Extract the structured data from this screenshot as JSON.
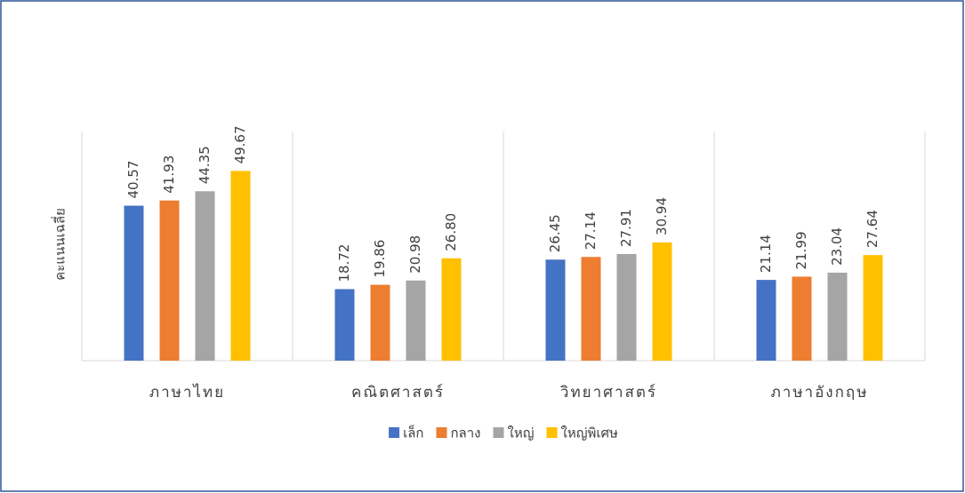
{
  "chart_data": {
    "type": "bar",
    "y_label": "คะแนนเฉลี่ย",
    "categories": [
      "ภาษาไทย",
      "คณิตศาสตร์",
      "วิทยาศาสตร์",
      "ภาษาอังกฤษ"
    ],
    "series": [
      {
        "name": "เล็ก",
        "color": "#4472c4",
        "values": [
          40.57,
          18.72,
          26.45,
          21.14
        ]
      },
      {
        "name": "กลาง",
        "color": "#ed7d31",
        "values": [
          41.93,
          19.86,
          27.14,
          21.99
        ]
      },
      {
        "name": "ใหญ่",
        "color": "#a5a5a5",
        "values": [
          44.35,
          20.98,
          27.91,
          23.04
        ]
      },
      {
        "name": "ใหญ่พิเศษ",
        "color": "#ffc000",
        "values": [
          49.67,
          26.8,
          30.94,
          27.64
        ],
        "value_labels": [
          "49.67",
          "26.80",
          "30.94",
          "27.64"
        ]
      }
    ],
    "ylim": [
      0,
      60
    ],
    "legend": "bottom"
  }
}
